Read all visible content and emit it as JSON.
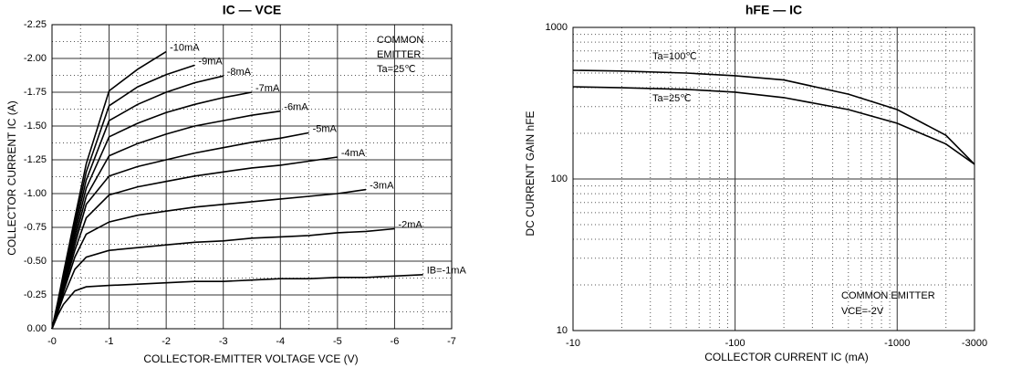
{
  "chart_data": [
    {
      "type": "line",
      "title": "IC — VCE",
      "xlabel": "COLLECTOR-EMITTER VOLTAGE VCE (V)",
      "ylabel": "COLLECTOR CURRENT IC (A)",
      "annotations": [
        "COMMON",
        "EMITTER",
        "Ta=25℃"
      ],
      "x": [
        0,
        -0.1,
        -0.2,
        -0.4,
        -0.6,
        -1,
        -1.5,
        -2,
        -2.5,
        -3,
        -3.5,
        -4,
        -4.5,
        -5,
        -5.5,
        -6,
        -6.5
      ],
      "xlim": [
        0,
        -7
      ],
      "xticks": [
        {
          "value": 0,
          "label": "-0"
        },
        -1,
        -2,
        -3,
        -4,
        -5,
        -6,
        -7
      ],
      "xminorticks": [
        -0.5,
        -1.5,
        -2.5,
        -3.5,
        -4.5,
        -5.5,
        -6.5
      ],
      "ylim": [
        0,
        -2.25
      ],
      "yticks": [
        {
          "value": 0,
          "label": "0.00"
        },
        -0.25,
        {
          "value": -0.5,
          "label": "-0.50"
        },
        -0.75,
        {
          "value": -1,
          "label": "-1.00"
        },
        -1.25,
        {
          "value": -1.5,
          "label": "-1.50"
        },
        -1.75,
        {
          "value": -2,
          "label": "-2.00"
        },
        -2.25
      ],
      "yminorticks": [
        -0.125,
        -0.375,
        -0.625,
        -0.875,
        -1.125,
        -1.375,
        -1.625,
        -1.875,
        -2.125
      ],
      "grid": true,
      "color": "#000000",
      "series": [
        {
          "name": "-10mA",
          "values": [
            0,
            -0.2,
            -0.41,
            -0.82,
            -1.22,
            -1.76,
            -1.92,
            -2.05,
            null,
            null,
            null,
            null,
            null,
            null,
            null,
            null,
            null
          ]
        },
        {
          "name": "-9mA",
          "values": [
            0,
            -0.19,
            -0.39,
            -0.78,
            -1.16,
            -1.65,
            -1.79,
            -1.88,
            -1.95,
            null,
            null,
            null,
            null,
            null,
            null,
            null,
            null
          ]
        },
        {
          "name": "-8mA",
          "values": [
            0,
            -0.18,
            -0.37,
            -0.74,
            -1.1,
            -1.54,
            -1.66,
            -1.75,
            -1.82,
            -1.87,
            null,
            null,
            null,
            null,
            null,
            null,
            null
          ]
        },
        {
          "name": "-7mA",
          "values": [
            0,
            -0.17,
            -0.35,
            -0.7,
            -1.04,
            -1.42,
            -1.52,
            -1.6,
            -1.66,
            -1.71,
            -1.75,
            null,
            null,
            null,
            null,
            null,
            null
          ]
        },
        {
          "name": "-6mA",
          "values": [
            0,
            -0.16,
            -0.33,
            -0.66,
            -0.98,
            -1.28,
            -1.37,
            -1.44,
            -1.5,
            -1.54,
            -1.58,
            -1.61,
            null,
            null,
            null,
            null,
            null
          ]
        },
        {
          "name": "-5mA",
          "values": [
            0,
            -0.15,
            -0.31,
            -0.62,
            -0.92,
            -1.13,
            -1.2,
            -1.25,
            -1.3,
            -1.34,
            -1.38,
            -1.41,
            -1.45,
            null,
            null,
            null,
            null
          ]
        },
        {
          "name": "-4mA",
          "values": [
            0,
            -0.14,
            -0.29,
            -0.58,
            -0.82,
            -0.99,
            -1.05,
            -1.09,
            -1.13,
            -1.16,
            -1.19,
            -1.21,
            -1.24,
            -1.27,
            null,
            null,
            null
          ]
        },
        {
          "name": "-3mA",
          "values": [
            0,
            -0.13,
            -0.27,
            -0.53,
            -0.7,
            -0.79,
            -0.84,
            -0.87,
            -0.9,
            -0.92,
            -0.94,
            -0.96,
            -0.98,
            -1.0,
            -1.03,
            null,
            null
          ]
        },
        {
          "name": "-2mA",
          "values": [
            0,
            -0.12,
            -0.24,
            -0.44,
            -0.53,
            -0.58,
            -0.6,
            -0.62,
            -0.64,
            -0.65,
            -0.67,
            -0.68,
            -0.69,
            -0.71,
            -0.72,
            -0.74,
            null
          ]
        },
        {
          "name": "IB=-1mA",
          "values": [
            0,
            -0.1,
            -0.18,
            -0.28,
            -0.31,
            -0.32,
            -0.33,
            -0.34,
            -0.35,
            -0.35,
            -0.36,
            -0.37,
            -0.37,
            -0.38,
            -0.38,
            -0.39,
            -0.4
          ]
        }
      ]
    },
    {
      "type": "line",
      "title": "hFE — IC",
      "xlabel": "COLLECTOR CURRENT IC (mA)",
      "ylabel": "DC CURRENT GAIN hFE",
      "annotations": [
        "COMMON EMITTER",
        "VCE=-2V"
      ],
      "xlog": true,
      "ylog": true,
      "x": [
        -10,
        -20,
        -50,
        -100,
        -200,
        -500,
        -1000,
        -2000,
        -3000
      ],
      "xlim": [
        -10,
        -3000
      ],
      "xticks": [
        -10,
        -100,
        -1000,
        -3000
      ],
      "xminorticks": [
        -20,
        -30,
        -40,
        -50,
        -60,
        -70,
        -80,
        -90,
        -200,
        -300,
        -400,
        -500,
        -600,
        -700,
        -800,
        -900,
        -2000
      ],
      "ylim": [
        10,
        1000
      ],
      "yticks": [
        10,
        100,
        1000
      ],
      "yminorticks": [
        20,
        30,
        40,
        50,
        60,
        70,
        80,
        90,
        200,
        300,
        400,
        500,
        600,
        700,
        800,
        900
      ],
      "grid": true,
      "color": "#000000",
      "series": [
        {
          "name": "Ta=100℃",
          "values": [
            521,
            515,
            500,
            480,
            450,
            363,
            287,
            194,
            125
          ]
        },
        {
          "name": "Ta=25℃",
          "values": [
            406,
            400,
            390,
            374,
            344,
            287,
            233,
            170,
            125
          ]
        }
      ]
    }
  ]
}
